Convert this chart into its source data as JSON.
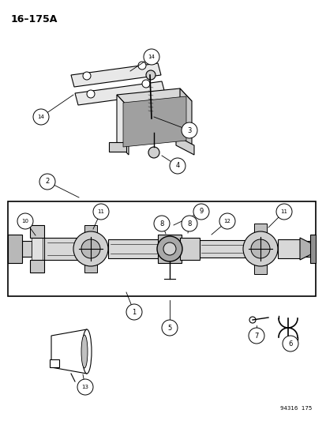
{
  "title": "16–175A",
  "footer": "94316  175",
  "bg_color": "#ffffff",
  "fg_color": "#000000",
  "fig_width": 4.14,
  "fig_height": 5.33,
  "dpi": 100
}
